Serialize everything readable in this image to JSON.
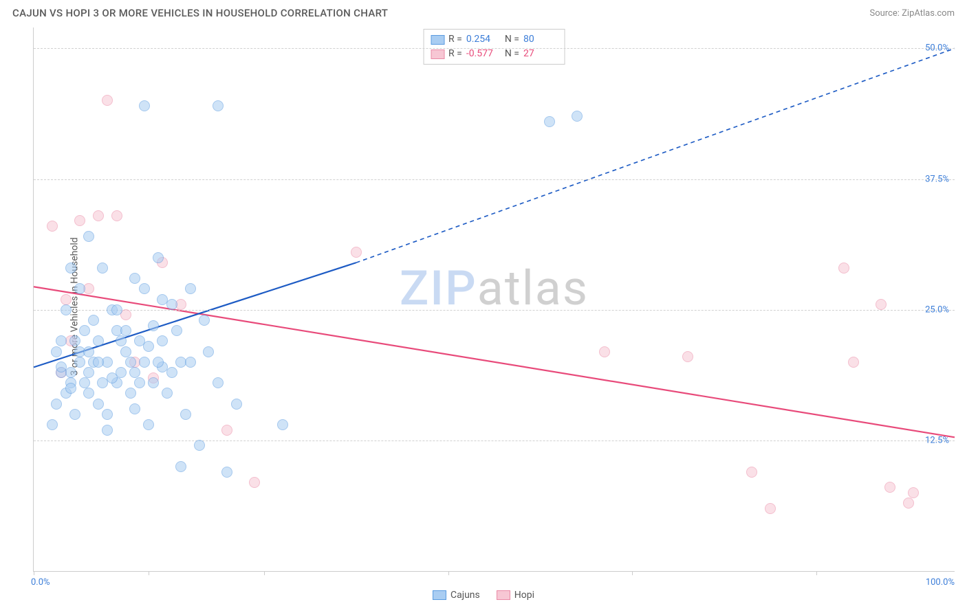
{
  "header": {
    "title": "CAJUN VS HOPI 3 OR MORE VEHICLES IN HOUSEHOLD CORRELATION CHART",
    "source_prefix": "Source: ",
    "source": "ZipAtlas.com"
  },
  "axes": {
    "ylabel": "3 or more Vehicles in Household",
    "x_min_label": "0.0%",
    "x_max_label": "100.0%",
    "xlim": [
      0,
      100
    ],
    "ylim": [
      0,
      52
    ],
    "y_gridlines": [
      12.5,
      25.0,
      37.5,
      50.0
    ],
    "y_labels": [
      "12.5%",
      "25.0%",
      "37.5%",
      "50.0%"
    ],
    "x_ticks": [
      0,
      12.5,
      25,
      45,
      65,
      85
    ]
  },
  "style": {
    "bg": "#ffffff",
    "grid_color": "#d0d0d0",
    "axis_color": "#cccccc",
    "title_color": "#5a5a5a",
    "label_color": "#5a5a5a",
    "tick_label_color": "#3b7dd8",
    "point_radius": 8,
    "point_opacity": 0.55,
    "title_fontsize": 15,
    "label_fontsize": 14,
    "tick_fontsize": 13
  },
  "series": {
    "cajun": {
      "label": "Cajuns",
      "color_fill": "#a9cdf2",
      "color_stroke": "#5a9be0",
      "trend_color": "#1d5bc4",
      "trend_width": 2.2,
      "R": "0.254",
      "N": "80",
      "trend": {
        "x1": 0,
        "y1": 19.5,
        "x2": 35,
        "y2": 29.5,
        "dash_to_x": 100,
        "dash_to_y": 50.0
      },
      "points": [
        [
          2,
          14
        ],
        [
          2.5,
          16
        ],
        [
          3,
          19
        ],
        [
          3.5,
          17
        ],
        [
          3,
          22
        ],
        [
          4,
          18
        ],
        [
          4,
          19
        ],
        [
          4.5,
          15
        ],
        [
          5,
          20
        ],
        [
          5,
          21
        ],
        [
          5.5,
          23
        ],
        [
          6,
          17
        ],
        [
          6,
          19
        ],
        [
          6.5,
          20
        ],
        [
          7,
          22
        ],
        [
          7,
          16
        ],
        [
          7.5,
          18
        ],
        [
          8,
          15
        ],
        [
          8,
          20
        ],
        [
          8.5,
          25
        ],
        [
          9,
          23
        ],
        [
          9,
          18
        ],
        [
          9.5,
          19
        ],
        [
          10,
          21
        ],
        [
          10.5,
          17
        ],
        [
          11,
          28
        ],
        [
          11,
          19
        ],
        [
          11.5,
          22
        ],
        [
          12,
          44.5
        ],
        [
          12,
          20
        ],
        [
          12.5,
          14
        ],
        [
          13,
          18
        ],
        [
          13.5,
          30
        ],
        [
          14,
          22
        ],
        [
          14,
          26
        ],
        [
          14.5,
          17
        ],
        [
          15,
          19
        ],
        [
          15.5,
          23
        ],
        [
          16,
          20
        ],
        [
          16.5,
          15
        ],
        [
          17,
          27
        ],
        [
          18,
          12
        ],
        [
          18.5,
          24
        ],
        [
          19,
          21
        ],
        [
          20,
          44.5
        ],
        [
          20,
          18
        ],
        [
          21,
          9.5
        ],
        [
          22,
          16
        ],
        [
          4,
          29
        ],
        [
          5,
          27
        ],
        [
          6,
          32
        ],
        [
          6.5,
          24
        ],
        [
          7.5,
          29
        ],
        [
          8,
          13.5
        ],
        [
          9,
          25
        ],
        [
          10,
          23
        ],
        [
          11,
          15.5
        ],
        [
          12,
          27
        ],
        [
          13,
          23.5
        ],
        [
          14,
          19.5
        ],
        [
          15,
          25.5
        ],
        [
          16,
          10
        ],
        [
          17,
          20
        ],
        [
          6,
          21
        ],
        [
          7,
          20
        ],
        [
          5.5,
          18
        ],
        [
          4.5,
          22
        ],
        [
          3.5,
          25
        ],
        [
          2.5,
          21
        ],
        [
          8.5,
          18.5
        ],
        [
          9.5,
          22
        ],
        [
          10.5,
          20
        ],
        [
          11.5,
          18
        ],
        [
          12.5,
          21.5
        ],
        [
          13.5,
          20
        ],
        [
          27,
          14
        ],
        [
          56,
          43
        ],
        [
          59,
          43.5
        ],
        [
          3,
          19.5
        ],
        [
          4,
          17.5
        ]
      ]
    },
    "hopi": {
      "label": "Hopi",
      "color_fill": "#f7c7d4",
      "color_stroke": "#ea8aa6",
      "trend_color": "#e84a7a",
      "trend_width": 2.2,
      "R": "-0.577",
      "N": "27",
      "trend": {
        "x1": 0,
        "y1": 27.2,
        "x2": 100,
        "y2": 12.8
      },
      "points": [
        [
          2,
          33
        ],
        [
          3,
          19
        ],
        [
          3.5,
          26
        ],
        [
          4,
          22
        ],
        [
          5,
          33.5
        ],
        [
          6,
          27
        ],
        [
          7,
          34
        ],
        [
          8,
          45
        ],
        [
          9,
          34
        ],
        [
          10,
          24.5
        ],
        [
          11,
          20
        ],
        [
          13,
          18.5
        ],
        [
          14,
          29.5
        ],
        [
          16,
          25.5
        ],
        [
          21,
          13.5
        ],
        [
          24,
          8.5
        ],
        [
          35,
          30.5
        ],
        [
          62,
          21
        ],
        [
          71,
          20.5
        ],
        [
          78,
          9.5
        ],
        [
          80,
          6
        ],
        [
          88,
          29
        ],
        [
          89,
          20
        ],
        [
          92,
          25.5
        ],
        [
          93,
          8
        ],
        [
          95,
          6.5
        ],
        [
          95.5,
          7.5
        ]
      ]
    }
  },
  "legend_top": {
    "r_label": "R =",
    "n_label": "N ="
  },
  "watermark": {
    "zip": "ZIP",
    "atlas": "atlas"
  }
}
